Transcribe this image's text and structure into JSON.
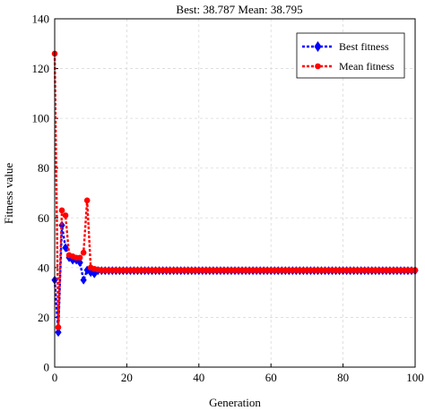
{
  "chart_data": {
    "type": "line",
    "title": "Best: 38.787 Mean: 38.795",
    "xlabel": "Generation",
    "ylabel": "Fitness value",
    "xlim": [
      0,
      100
    ],
    "ylim": [
      0,
      140
    ],
    "xticks": [
      0,
      20,
      40,
      60,
      80,
      100
    ],
    "yticks": [
      0,
      20,
      40,
      60,
      80,
      100,
      120,
      140
    ],
    "grid": true,
    "legend_position": "top-right",
    "series": [
      {
        "name": "Best fitness",
        "color": "#0000ff",
        "marker": "diamond",
        "x": [
          0,
          1,
          2,
          3,
          4,
          5,
          6,
          7,
          8,
          9,
          10,
          11,
          12,
          13,
          14,
          15,
          16,
          17,
          18,
          19,
          20,
          21,
          22,
          23,
          24,
          25,
          26,
          27,
          28,
          29,
          30,
          31,
          32,
          33,
          34,
          35,
          36,
          37,
          38,
          39,
          40,
          41,
          42,
          43,
          44,
          45,
          46,
          47,
          48,
          49,
          50,
          51,
          52,
          53,
          54,
          55,
          56,
          57,
          58,
          59,
          60,
          61,
          62,
          63,
          64,
          65,
          66,
          67,
          68,
          69,
          70,
          71,
          72,
          73,
          74,
          75,
          76,
          77,
          78,
          79,
          80,
          81,
          82,
          83,
          84,
          85,
          86,
          87,
          88,
          89,
          90,
          91,
          92,
          93,
          94,
          95,
          96,
          97,
          98,
          99,
          100
        ],
        "y": [
          35,
          14,
          57,
          48,
          44,
          43,
          43,
          42,
          35,
          39,
          38,
          37.5,
          38.8,
          38.8,
          38.8,
          38.8,
          38.8,
          38.8,
          38.8,
          38.8,
          38.8,
          38.8,
          38.8,
          38.8,
          38.8,
          38.8,
          38.8,
          38.8,
          38.8,
          38.8,
          38.8,
          38.8,
          38.8,
          38.8,
          38.8,
          38.8,
          38.8,
          38.8,
          38.8,
          38.8,
          38.8,
          38.8,
          38.8,
          38.8,
          38.8,
          38.8,
          38.8,
          38.8,
          38.8,
          38.8,
          38.8,
          38.8,
          38.8,
          38.8,
          38.8,
          38.8,
          38.8,
          38.8,
          38.8,
          38.8,
          38.8,
          38.8,
          38.8,
          38.8,
          38.8,
          38.8,
          38.8,
          38.8,
          38.8,
          38.8,
          38.8,
          38.8,
          38.8,
          38.8,
          38.8,
          38.8,
          38.8,
          38.8,
          38.8,
          38.8,
          38.8,
          38.8,
          38.8,
          38.8,
          38.8,
          38.8,
          38.8,
          38.8,
          38.8,
          38.8,
          38.8,
          38.8,
          38.8,
          38.8,
          38.8,
          38.8,
          38.8,
          38.8,
          38.8,
          38.8,
          38.8
        ]
      },
      {
        "name": "Mean fitness",
        "color": "#ff0000",
        "marker": "circle",
        "x": [
          0,
          1,
          2,
          3,
          4,
          5,
          6,
          7,
          8,
          9,
          10,
          11,
          12,
          13,
          14,
          15,
          16,
          17,
          18,
          19,
          20,
          21,
          22,
          23,
          24,
          25,
          26,
          27,
          28,
          29,
          30,
          31,
          32,
          33,
          34,
          35,
          36,
          37,
          38,
          39,
          40,
          41,
          42,
          43,
          44,
          45,
          46,
          47,
          48,
          49,
          50,
          51,
          52,
          53,
          54,
          55,
          56,
          57,
          58,
          59,
          60,
          61,
          62,
          63,
          64,
          65,
          66,
          67,
          68,
          69,
          70,
          71,
          72,
          73,
          74,
          75,
          76,
          77,
          78,
          79,
          80,
          81,
          82,
          83,
          84,
          85,
          86,
          87,
          88,
          89,
          90,
          91,
          92,
          93,
          94,
          95,
          96,
          97,
          98,
          99,
          100
        ],
        "y": [
          126,
          16,
          63,
          61,
          45,
          44.5,
          44,
          44,
          46,
          67,
          40,
          39.5,
          39.2,
          39,
          39,
          39,
          39,
          39,
          39,
          39,
          39,
          39,
          39,
          39,
          39,
          39,
          39,
          39,
          39,
          39,
          39,
          39,
          39,
          39,
          39,
          39,
          39,
          39,
          39,
          39,
          39,
          39,
          39,
          39,
          39,
          39,
          39,
          39,
          39,
          39,
          39,
          39,
          39,
          39,
          39,
          39,
          39,
          39,
          39,
          39,
          39,
          39,
          39,
          39,
          39,
          39,
          39,
          39,
          39,
          39,
          39,
          39,
          39,
          39,
          39,
          39,
          39,
          39,
          39,
          39,
          39,
          39,
          39,
          39,
          39,
          39,
          39,
          39,
          39,
          39,
          39,
          39,
          39,
          39,
          39,
          39,
          39,
          39,
          39,
          39,
          39
        ]
      }
    ]
  }
}
